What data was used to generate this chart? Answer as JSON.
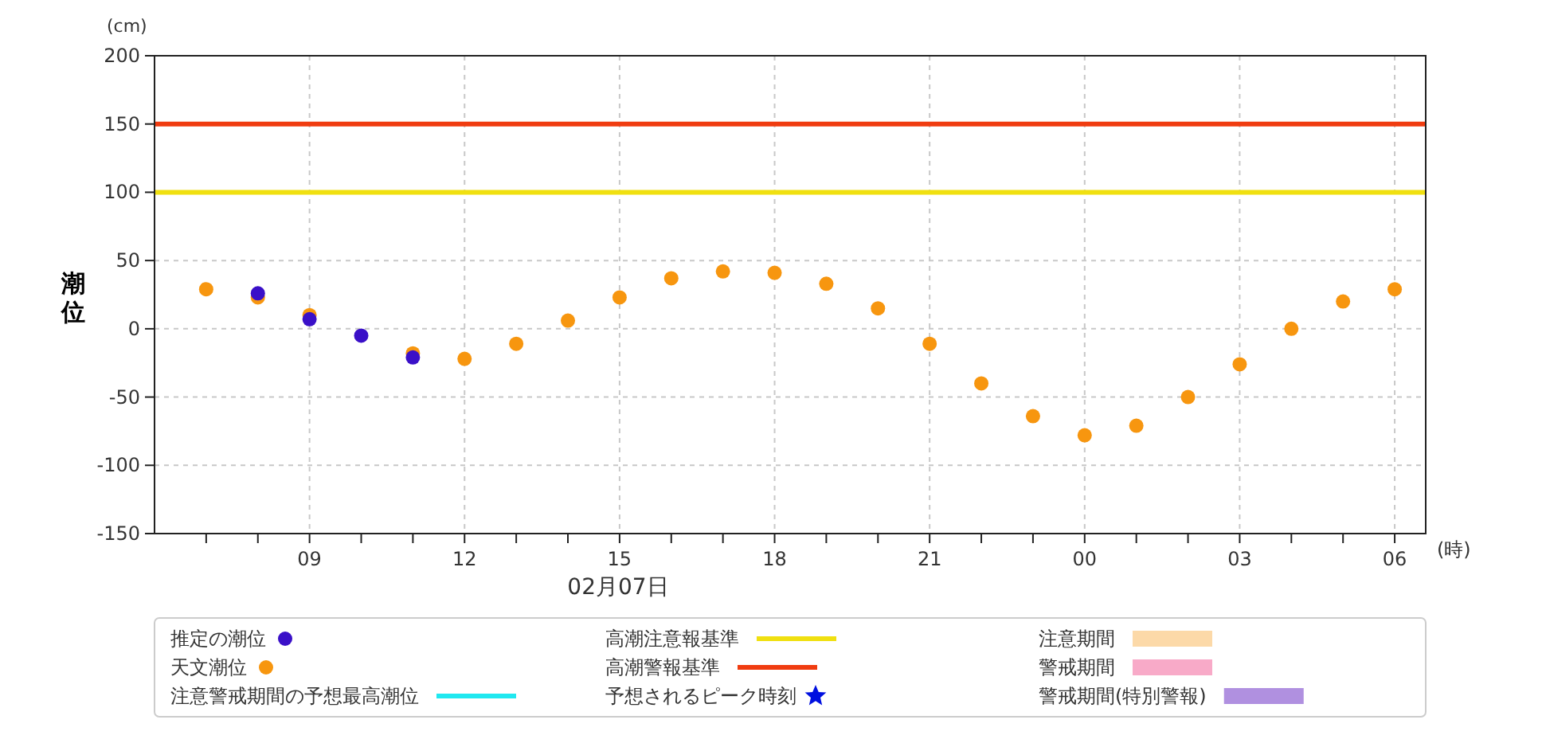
{
  "chart_data": {
    "type": "scatter",
    "ylabel": "潮位",
    "xlabel": "(時)",
    "annotations": [
      "(cm)",
      "02月07日"
    ],
    "x": [
      "--02-07T07:00",
      "--02-07T08:00",
      "--02-07T09:00",
      "--02-07T10:00",
      "--02-07T11:00",
      "--02-07T12:00",
      "--02-07T13:00",
      "--02-07T14:00",
      "--02-07T15:00",
      "--02-07T16:00",
      "--02-07T17:00",
      "--02-07T18:00",
      "--02-07T19:00",
      "--02-07T20:00",
      "--02-07T21:00",
      "--02-07T22:00",
      "--02-07T23:00",
      "--02-08T00:00",
      "--02-08T01:00",
      "--02-08T02:00",
      "--02-08T03:00",
      "--02-08T04:00",
      "--02-08T05:00",
      "--02-08T06:00"
    ],
    "series": [
      {
        "name": "推定の潮位",
        "marker": "circle",
        "color": "#3a10c8",
        "x": [
          "--02-07T08:00",
          "--02-07T09:00",
          "--02-07T10:00",
          "--02-07T11:00"
        ],
        "values": [
          26,
          7,
          -5,
          -21
        ]
      },
      {
        "name": "天文潮位",
        "marker": "circle",
        "color": "#f7960f",
        "values": [
          29,
          23,
          10,
          null,
          -18,
          -22,
          -11,
          6,
          23,
          37,
          42,
          41,
          33,
          15,
          -11,
          -40,
          -64,
          -78,
          -71,
          -50,
          -26,
          0,
          20,
          29
        ]
      },
      {
        "name": "注意警戒期間の予想最高潮位",
        "type": "line",
        "color": "#20e8f0",
        "values": [
          null,
          null,
          null,
          null,
          null,
          null,
          null,
          null,
          null,
          null,
          null,
          null,
          null,
          null,
          null,
          null,
          null,
          null,
          null,
          null,
          null,
          null,
          null,
          null
        ]
      },
      {
        "name": "予想されるピーク時刻",
        "type": "scatter",
        "marker": "star",
        "color": "#0010e0",
        "values": [
          null,
          null,
          null,
          null,
          null,
          null,
          null,
          null,
          null,
          null,
          null,
          null,
          null,
          null,
          null,
          null,
          null,
          null,
          null,
          null,
          null,
          null,
          null,
          null
        ]
      },
      {
        "name": "注意期間",
        "type": "area",
        "color": "#fcd9a8",
        "values": [
          null,
          null,
          null,
          null,
          null,
          null,
          null,
          null,
          null,
          null,
          null,
          null,
          null,
          null,
          null,
          null,
          null,
          null,
          null,
          null,
          null,
          null,
          null,
          null
        ]
      },
      {
        "name": "警戒期間",
        "type": "area",
        "color": "#f8aac8",
        "values": [
          null,
          null,
          null,
          null,
          null,
          null,
          null,
          null,
          null,
          null,
          null,
          null,
          null,
          null,
          null,
          null,
          null,
          null,
          null,
          null,
          null,
          null,
          null,
          null
        ]
      },
      {
        "name": "警戒期間(特別警報)",
        "type": "area",
        "color": "#b090e0",
        "values": [
          null,
          null,
          null,
          null,
          null,
          null,
          null,
          null,
          null,
          null,
          null,
          null,
          null,
          null,
          null,
          null,
          null,
          null,
          null,
          null,
          null,
          null,
          null,
          null
        ]
      }
    ],
    "ref_lines": [
      {
        "axis": "y",
        "value": 100,
        "label": "高潮注意報基準",
        "color": "#f0e010"
      },
      {
        "axis": "y",
        "value": 150,
        "label": "高潮警報基準",
        "color": "#f03c10"
      }
    ],
    "xlim": [
      "--02-07T06:00",
      "--02-08T06:36"
    ],
    "xticks": [
      {
        "value": "--02-07T07:00",
        "label": null
      },
      {
        "value": "--02-07T08:00",
        "label": null
      },
      {
        "value": "--02-07T09:00",
        "label": "09"
      },
      {
        "value": "--02-07T10:00",
        "label": null
      },
      {
        "value": "--02-07T11:00",
        "label": null
      },
      {
        "value": "--02-07T12:00",
        "label": "12"
      },
      {
        "value": "--02-07T13:00",
        "label": null
      },
      {
        "value": "--02-07T14:00",
        "label": null
      },
      {
        "value": "--02-07T15:00",
        "label": "15"
      },
      {
        "value": "--02-07T16:00",
        "label": null
      },
      {
        "value": "--02-07T17:00",
        "label": null
      },
      {
        "value": "--02-07T18:00",
        "label": "18"
      },
      {
        "value": "--02-07T19:00",
        "label": null
      },
      {
        "value": "--02-07T20:00",
        "label": null
      },
      {
        "value": "--02-07T21:00",
        "label": "21"
      },
      {
        "value": "--02-07T22:00",
        "label": null
      },
      {
        "value": "--02-07T23:00",
        "label": null
      },
      {
        "value": "--02-08T00:00",
        "label": "00"
      },
      {
        "value": "--02-08T01:00",
        "label": null
      },
      {
        "value": "--02-08T02:00",
        "label": null
      },
      {
        "value": "--02-08T03:00",
        "label": "03"
      },
      {
        "value": "--02-08T04:00",
        "label": null
      },
      {
        "value": "--02-08T05:00",
        "label": null
      },
      {
        "value": "--02-08T06:00",
        "label": "06"
      }
    ],
    "ylim": [
      -150,
      200
    ],
    "yticks": [
      -150,
      -100,
      -50,
      0,
      50,
      100,
      150,
      200
    ],
    "grid": true,
    "legend": "bottom"
  }
}
